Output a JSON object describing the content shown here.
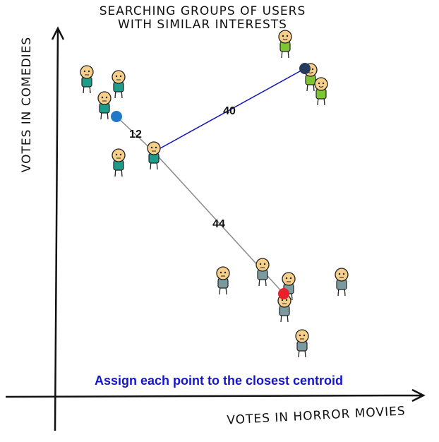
{
  "title": [
    "Searching groups of users",
    "with similar interests"
  ],
  "axes": {
    "y_label": "Votes in comedies",
    "x_label": "Votes in horror movies"
  },
  "distances": [
    12,
    40,
    44
  ],
  "caption": "Assign each point to the closest centroid"
}
